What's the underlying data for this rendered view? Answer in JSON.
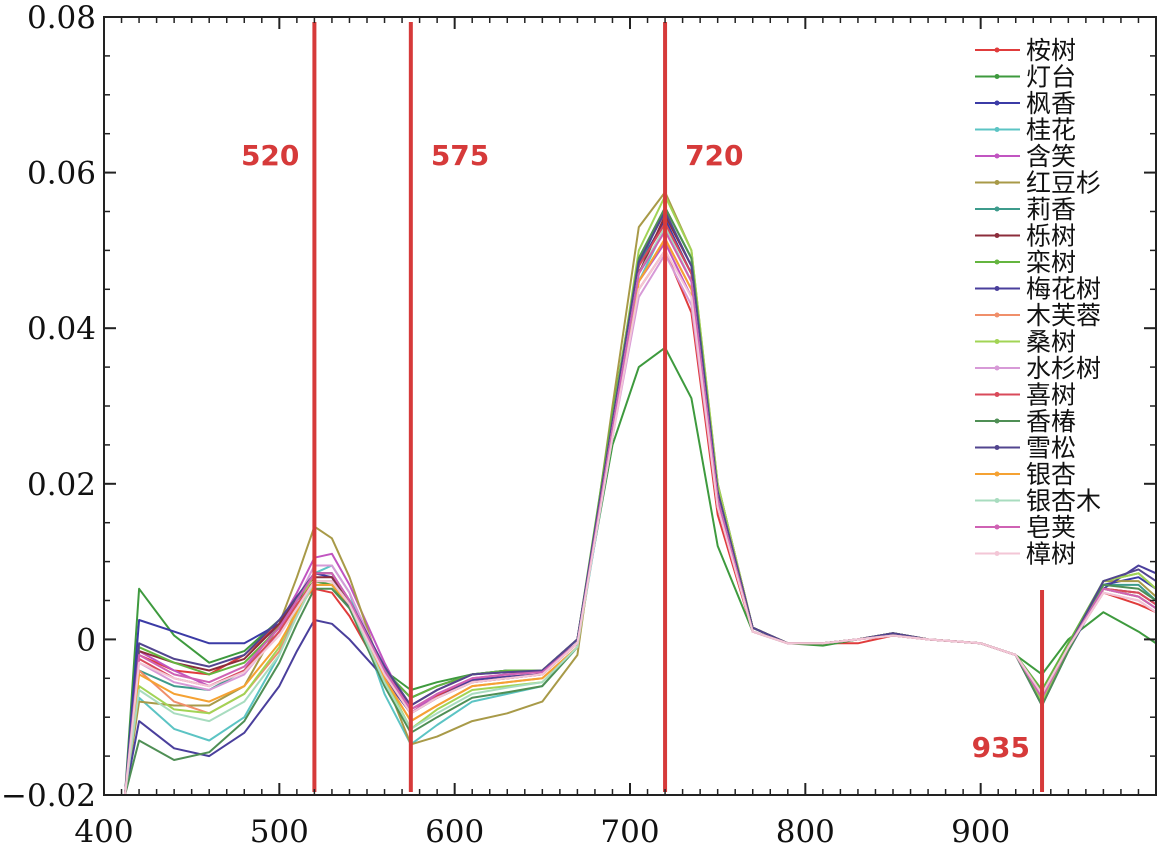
{
  "chart_data": {
    "type": "line",
    "xlabel": "",
    "ylabel": "",
    "xlim": [
      400,
      1000
    ],
    "ylim": [
      -0.02,
      0.08
    ],
    "x_ticks": [
      400,
      500,
      600,
      700,
      800,
      900
    ],
    "y_ticks": [
      -0.02,
      0,
      0.02,
      0.04,
      0.06,
      0.08
    ],
    "x_tick_labels": [
      "400",
      "500",
      "600",
      "700",
      "800",
      "900"
    ],
    "y_tick_labels": [
      "−0.02",
      "0",
      "0.02",
      "0.04",
      "0.06",
      "0.08"
    ],
    "grid": false,
    "legend_position": "top-right",
    "markers": [
      {
        "x": 520,
        "label": "520"
      },
      {
        "x": 575,
        "label": "575"
      },
      {
        "x": 720,
        "label": "720"
      },
      {
        "x": 935,
        "label": "935"
      }
    ],
    "marker_color": "#d63a3a",
    "x": [
      412,
      420,
      440,
      460,
      480,
      500,
      510,
      520,
      530,
      540,
      560,
      575,
      590,
      610,
      630,
      650,
      670,
      690,
      705,
      720,
      735,
      750,
      770,
      790,
      810,
      830,
      850,
      870,
      900,
      920,
      935,
      950,
      970,
      990,
      1000
    ],
    "series": [
      {
        "name": "桉树",
        "color": "#e03c3c",
        "values": [
          -0.02,
          -0.002,
          -0.004,
          -0.0045,
          -0.002,
          0.002,
          0.0045,
          0.0065,
          0.006,
          0.003,
          -0.005,
          -0.009,
          -0.0072,
          -0.0052,
          -0.0048,
          -0.0045,
          -0.0005,
          0.028,
          0.045,
          0.05,
          0.042,
          0.016,
          0.001,
          -0.0005,
          -0.0005,
          -0.0005,
          0.0005,
          0.0,
          -0.0005,
          -0.002,
          -0.0068,
          -0.001,
          0.006,
          0.0045,
          0.0035
        ]
      },
      {
        "name": "灯台",
        "color": "#3e9a3e",
        "values": [
          -0.02,
          0.0065,
          0.0005,
          -0.003,
          -0.0015,
          0.0025,
          0.005,
          0.0075,
          0.007,
          0.004,
          -0.004,
          -0.0065,
          -0.0055,
          -0.0045,
          -0.004,
          -0.004,
          0.0,
          0.025,
          0.035,
          0.0375,
          0.031,
          0.012,
          0.001,
          -0.0005,
          -0.0008,
          0.0,
          0.0005,
          0.0,
          -0.0005,
          -0.002,
          -0.0045,
          0.0,
          0.0035,
          0.001,
          -0.0005
        ]
      },
      {
        "name": "枫香",
        "color": "#3b3ba6",
        "values": [
          -0.02,
          0.0025,
          0.001,
          -0.0005,
          -0.0005,
          0.002,
          0.005,
          0.0085,
          0.008,
          0.004,
          -0.004,
          -0.0075,
          -0.006,
          -0.0045,
          -0.004,
          -0.004,
          0.0,
          0.028,
          0.048,
          0.054,
          0.047,
          0.02,
          0.0015,
          -0.0005,
          -0.0005,
          0.0,
          0.0008,
          0.0,
          -0.0005,
          -0.002,
          -0.0085,
          -0.001,
          0.007,
          0.008,
          0.0065
        ]
      },
      {
        "name": "桂花",
        "color": "#5cc4c4",
        "values": [
          -0.02,
          -0.0075,
          -0.0115,
          -0.013,
          -0.01,
          -0.002,
          0.004,
          0.0085,
          0.0095,
          0.006,
          -0.007,
          -0.0135,
          -0.011,
          -0.008,
          -0.007,
          -0.006,
          -0.001,
          0.026,
          0.046,
          0.053,
          0.046,
          0.018,
          0.001,
          -0.0005,
          -0.0005,
          0.0,
          0.0008,
          0.0,
          -0.0005,
          -0.002,
          -0.0075,
          -0.001,
          0.0065,
          0.0055,
          0.004
        ]
      },
      {
        "name": "含笑",
        "color": "#c155c1",
        "values": [
          -0.02,
          -0.0015,
          -0.004,
          -0.006,
          -0.004,
          0.002,
          0.006,
          0.0105,
          0.011,
          0.007,
          -0.003,
          -0.0095,
          -0.007,
          -0.005,
          -0.0045,
          -0.004,
          -0.0005,
          0.027,
          0.046,
          0.051,
          0.044,
          0.017,
          0.001,
          -0.0005,
          -0.0005,
          0.0,
          0.0005,
          0.0,
          -0.0005,
          -0.002,
          -0.0075,
          -0.001,
          0.0065,
          0.0055,
          0.004
        ]
      },
      {
        "name": "红豆杉",
        "color": "#a89a48",
        "values": [
          -0.02,
          -0.008,
          -0.0085,
          -0.0085,
          -0.006,
          0.002,
          0.008,
          0.0145,
          0.013,
          0.008,
          -0.005,
          -0.0135,
          -0.0125,
          -0.0105,
          -0.0095,
          -0.008,
          -0.002,
          0.03,
          0.053,
          0.0575,
          0.05,
          0.02,
          0.0015,
          -0.0005,
          -0.0005,
          0.0,
          0.0008,
          0.0,
          -0.0005,
          -0.002,
          -0.008,
          -0.001,
          0.0075,
          0.0075,
          0.0055
        ]
      },
      {
        "name": "莉香",
        "color": "#3d9b8c",
        "values": [
          -0.02,
          -0.004,
          -0.006,
          -0.0065,
          -0.004,
          0.001,
          0.005,
          0.0085,
          0.0085,
          0.005,
          -0.004,
          -0.0095,
          -0.0075,
          -0.0055,
          -0.005,
          -0.0045,
          -0.0005,
          0.028,
          0.048,
          0.0555,
          0.049,
          0.019,
          0.0015,
          -0.0005,
          -0.0005,
          0.0,
          0.0008,
          0.0,
          -0.0005,
          -0.002,
          -0.0075,
          -0.001,
          0.007,
          0.007,
          0.005
        ]
      },
      {
        "name": "栎树",
        "color": "#8c2d3b",
        "values": [
          -0.02,
          -0.0015,
          -0.003,
          -0.004,
          -0.0025,
          0.002,
          0.0055,
          0.008,
          0.008,
          0.005,
          -0.004,
          -0.0085,
          -0.0065,
          -0.0045,
          -0.0042,
          -0.004,
          0.0,
          0.028,
          0.047,
          0.0545,
          0.048,
          0.019,
          0.0015,
          -0.0005,
          -0.0005,
          0.0,
          0.0008,
          0.0,
          -0.0005,
          -0.002,
          -0.007,
          -0.001,
          0.0065,
          0.006,
          0.0045
        ]
      },
      {
        "name": "栾树",
        "color": "#64b53f",
        "values": [
          -0.02,
          -0.001,
          -0.003,
          -0.0045,
          -0.003,
          0.0015,
          0.0045,
          0.007,
          0.007,
          0.0045,
          -0.004,
          -0.0075,
          -0.006,
          -0.0045,
          -0.004,
          -0.004,
          0.0,
          0.029,
          0.049,
          0.0555,
          0.049,
          0.019,
          0.0015,
          -0.0005,
          -0.0005,
          0.0,
          0.0008,
          0.0,
          -0.0005,
          -0.002,
          -0.0065,
          -0.0005,
          0.0075,
          0.0085,
          0.0065
        ]
      },
      {
        "name": "梅花树",
        "color": "#4a3f9c",
        "values": [
          -0.02,
          -0.0105,
          -0.014,
          -0.015,
          -0.012,
          -0.006,
          -0.0015,
          0.0025,
          0.002,
          0.0,
          -0.005,
          -0.0095,
          -0.0075,
          -0.0052,
          -0.0048,
          -0.0045,
          -0.0005,
          0.027,
          0.048,
          0.0535,
          0.047,
          0.019,
          0.0015,
          -0.0005,
          -0.0005,
          0.0,
          0.0008,
          0.0,
          -0.0005,
          -0.002,
          -0.0085,
          -0.0015,
          0.0065,
          0.0095,
          0.0085
        ]
      },
      {
        "name": "木芙蓉",
        "color": "#f08f6a",
        "values": [
          -0.02,
          -0.004,
          -0.008,
          -0.0095,
          -0.007,
          -0.0015,
          0.003,
          0.0075,
          0.0075,
          0.0045,
          -0.005,
          -0.0105,
          -0.0085,
          -0.006,
          -0.0055,
          -0.005,
          -0.001,
          0.027,
          0.046,
          0.0515,
          0.045,
          0.018,
          0.001,
          -0.0005,
          -0.0005,
          0.0,
          0.0005,
          0.0,
          -0.0005,
          -0.002,
          -0.0075,
          -0.001,
          0.0065,
          0.0055,
          0.004
        ]
      },
      {
        "name": "桑树",
        "color": "#a2d455",
        "values": [
          -0.02,
          -0.006,
          -0.009,
          -0.0095,
          -0.007,
          -0.001,
          0.004,
          0.0085,
          0.0085,
          0.005,
          -0.005,
          -0.0115,
          -0.009,
          -0.0065,
          -0.006,
          -0.0055,
          -0.001,
          0.028,
          0.05,
          0.057,
          0.05,
          0.02,
          0.0015,
          -0.0005,
          -0.0005,
          0.0,
          0.0008,
          0.0,
          -0.0005,
          -0.002,
          -0.008,
          -0.001,
          0.0075,
          0.0085,
          0.0065
        ]
      },
      {
        "name": "水杉树",
        "color": "#d79ad7",
        "values": [
          -0.02,
          -0.003,
          -0.0055,
          -0.0065,
          -0.0045,
          0.001,
          0.005,
          0.0095,
          0.0095,
          0.006,
          -0.004,
          -0.0095,
          -0.0075,
          -0.0055,
          -0.005,
          -0.0045,
          -0.0005,
          0.026,
          0.044,
          0.0495,
          0.043,
          0.017,
          0.001,
          -0.0005,
          -0.0005,
          0.0,
          0.0005,
          0.0,
          -0.0005,
          -0.002,
          -0.007,
          -0.001,
          0.006,
          0.005,
          0.0035
        ]
      },
      {
        "name": "喜树",
        "color": "#d94a5a",
        "values": [
          -0.02,
          -0.0025,
          -0.005,
          -0.006,
          -0.004,
          0.001,
          0.0045,
          0.0075,
          0.0075,
          0.0045,
          -0.0045,
          -0.0095,
          -0.0075,
          -0.0055,
          -0.005,
          -0.0045,
          -0.0005,
          0.028,
          0.048,
          0.0535,
          0.047,
          0.019,
          0.0015,
          -0.0005,
          -0.0005,
          0.0,
          0.0008,
          0.0,
          -0.0005,
          -0.002,
          -0.0075,
          -0.001,
          0.0065,
          0.006,
          0.0045
        ]
      },
      {
        "name": "香椿",
        "color": "#4f8f55",
        "values": [
          -0.02,
          -0.013,
          -0.0155,
          -0.0145,
          -0.0105,
          -0.003,
          0.002,
          0.0065,
          0.0065,
          0.004,
          -0.006,
          -0.012,
          -0.01,
          -0.0075,
          -0.0068,
          -0.006,
          -0.001,
          0.028,
          0.049,
          0.0555,
          0.049,
          0.019,
          0.0015,
          -0.0005,
          -0.0005,
          0.0,
          0.0008,
          0.0,
          -0.0005,
          -0.002,
          -0.0085,
          -0.0015,
          0.007,
          0.0065,
          0.005
        ]
      },
      {
        "name": "雪松",
        "color": "#52458f",
        "values": [
          -0.02,
          -0.0005,
          -0.0025,
          -0.0035,
          -0.002,
          0.0025,
          0.0055,
          0.0085,
          0.0085,
          0.005,
          -0.0035,
          -0.0085,
          -0.0065,
          -0.0045,
          -0.0042,
          -0.004,
          0.0,
          0.028,
          0.0485,
          0.055,
          0.048,
          0.019,
          0.0015,
          -0.0005,
          -0.0005,
          0.0,
          0.0008,
          0.0,
          -0.0005,
          -0.002,
          -0.0075,
          -0.001,
          0.0075,
          0.009,
          0.0075
        ]
      },
      {
        "name": "银杏",
        "color": "#f5a233",
        "values": [
          -0.02,
          -0.0045,
          -0.007,
          -0.008,
          -0.006,
          -0.0005,
          0.0035,
          0.007,
          0.007,
          0.0045,
          -0.005,
          -0.0105,
          -0.0085,
          -0.006,
          -0.0055,
          -0.005,
          -0.001,
          0.027,
          0.046,
          0.0515,
          0.045,
          0.018,
          0.001,
          -0.0005,
          -0.0005,
          0.0,
          0.0005,
          0.0,
          -0.0005,
          -0.002,
          -0.0075,
          -0.001,
          0.0065,
          0.0055,
          0.004
        ]
      },
      {
        "name": "银杏木",
        "color": "#a8dcbf",
        "values": [
          -0.02,
          -0.0065,
          -0.0095,
          -0.0105,
          -0.008,
          -0.002,
          0.003,
          0.0075,
          0.0075,
          0.0045,
          -0.0055,
          -0.0115,
          -0.0095,
          -0.007,
          -0.0062,
          -0.0055,
          -0.001,
          0.027,
          0.047,
          0.053,
          0.046,
          0.018,
          0.001,
          -0.0005,
          -0.0005,
          0.0,
          0.0005,
          0.0,
          -0.0005,
          -0.002,
          -0.0075,
          -0.001,
          0.0065,
          0.0055,
          0.004
        ]
      },
      {
        "name": "皂荚",
        "color": "#cf62b4",
        "values": [
          -0.02,
          -0.002,
          -0.0045,
          -0.0055,
          -0.0035,
          0.0015,
          0.005,
          0.0085,
          0.0085,
          0.005,
          -0.004,
          -0.009,
          -0.007,
          -0.005,
          -0.0045,
          -0.0042,
          -0.0005,
          0.027,
          0.047,
          0.0525,
          0.046,
          0.018,
          0.001,
          -0.0005,
          -0.0005,
          0.0,
          0.0005,
          0.0,
          -0.0005,
          -0.002,
          -0.0075,
          -0.001,
          0.0065,
          0.0055,
          0.004
        ]
      },
      {
        "name": "樟树",
        "color": "#f3c6d6",
        "values": [
          -0.02,
          -0.003,
          -0.005,
          -0.006,
          -0.0042,
          0.0005,
          0.004,
          0.0075,
          0.0075,
          0.0045,
          -0.0045,
          -0.0095,
          -0.0075,
          -0.0055,
          -0.005,
          -0.0045,
          -0.0005,
          0.026,
          0.045,
          0.05,
          0.044,
          0.017,
          0.001,
          -0.0005,
          -0.0005,
          0.0,
          0.0005,
          0.0,
          -0.0005,
          -0.002,
          -0.007,
          -0.001,
          0.006,
          0.005,
          0.0035
        ]
      }
    ]
  }
}
